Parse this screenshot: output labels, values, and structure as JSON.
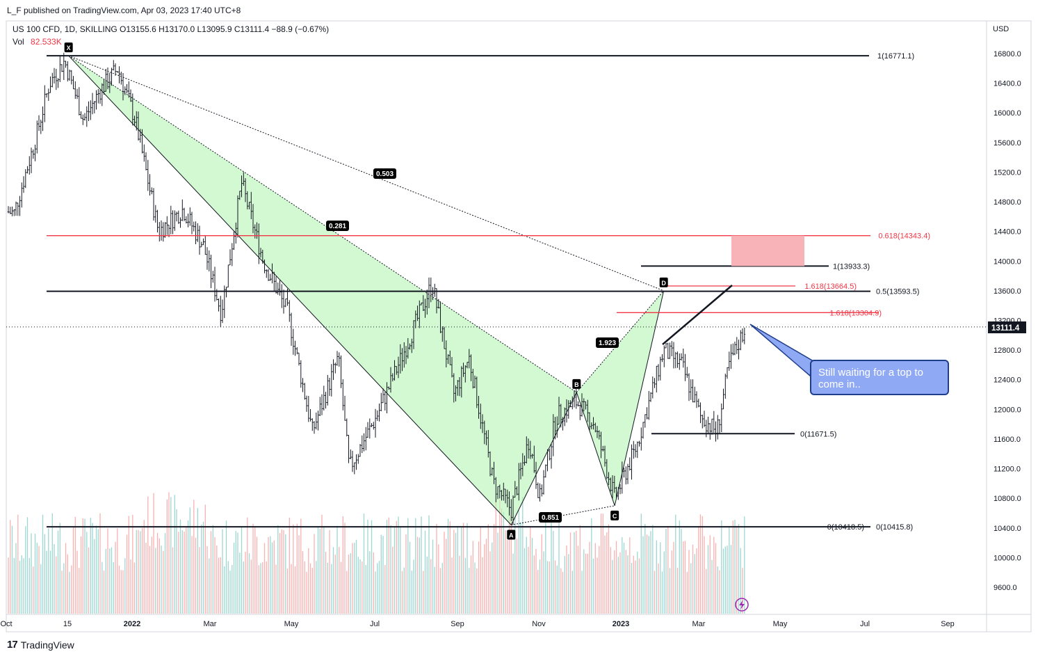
{
  "header": {
    "published": "L_F published on TradingView.com, Apr 03, 2023 17:40 UTC+8",
    "legend": "US 100 CFD, 1D, SKILLING  O13155.6  H13170.0  L13095.9  C13111.4  −88.9 (−0.67%)",
    "volume_label": "Vol",
    "volume_value": "82.533K"
  },
  "footer": {
    "brand": "TradingView",
    "logo": "17"
  },
  "price_axis": {
    "currency": "USD",
    "ticks": [
      "16800.0",
      "16400.0",
      "16000.0",
      "15600.0",
      "15200.0",
      "14800.0",
      "14400.0",
      "14000.0",
      "13600.0",
      "13200.0",
      "12800.0",
      "12400.0",
      "12000.0",
      "11600.0",
      "11200.0",
      "10800.0",
      "10400.0",
      "10000.0",
      "9600.0"
    ],
    "last_price": "13111.4"
  },
  "time_axis": {
    "ticks": [
      "Oct",
      "15",
      "2022",
      "Mar",
      "May",
      "Jul",
      "Sep",
      "Nov",
      "2023",
      "Mar",
      "May",
      "Jul",
      "Sep"
    ]
  },
  "annotation": {
    "text": "Still waiting for a top to come in.."
  },
  "chart_data": {
    "type": "candlestick",
    "symbol": "US 100 CFD",
    "interval": "1D",
    "currency": "USD",
    "ylim": [
      9300,
      17100
    ],
    "last_price": 13111.4,
    "harmonic_points": [
      {
        "label": "X",
        "date": "2021-11-22",
        "price": 16771
      },
      {
        "label": "A",
        "date": "2022-10-13",
        "price": 10440
      },
      {
        "label": "B",
        "date": "2022-11-30",
        "price": 12230
      },
      {
        "label": "C",
        "date": "2022-12-28",
        "price": 10700
      },
      {
        "label": "D",
        "date": "2023-02-02",
        "price": 13600
      }
    ],
    "ratio_labels": [
      "0.503",
      "0.281",
      "1.923",
      "0.851"
    ],
    "levels": [
      {
        "label": "1(16771.1)",
        "value": 16771.1,
        "color": "#131722"
      },
      {
        "label": "0.618(14343.4)",
        "value": 14343.4,
        "color": "#f23645"
      },
      {
        "label": "1(13933.3)",
        "value": 13933.3,
        "color": "#131722"
      },
      {
        "label": "1.618(13664.5)",
        "value": 13664.5,
        "color": "#f23645"
      },
      {
        "label": "0.5(13593.5)",
        "value": 13593.5,
        "color": "#131722"
      },
      {
        "label": "1.618(13304.9)",
        "value": 13304.9,
        "color": "#f23645"
      },
      {
        "label": "0(11671.5)",
        "value": 11671.5,
        "color": "#131722"
      },
      {
        "label": "0(10418.5)",
        "value": 10418.5,
        "color": "#131722"
      },
      {
        "label": "0(10415.8)",
        "value": 10415.8,
        "color": "#131722"
      }
    ],
    "target_zone": {
      "from": 13933.3,
      "to": 14343.4,
      "color": "#f7b3b8"
    },
    "price_path": [
      {
        "date": "2021-09-28",
        "price": 14700
      },
      {
        "date": "2021-10-13",
        "price": 14650
      },
      {
        "date": "2021-10-28",
        "price": 15600
      },
      {
        "date": "2021-11-08",
        "price": 16400
      },
      {
        "date": "2021-11-19",
        "price": 16700
      },
      {
        "date": "2021-12-03",
        "price": 15900
      },
      {
        "date": "2021-12-15",
        "price": 16300
      },
      {
        "date": "2021-12-28",
        "price": 16600
      },
      {
        "date": "2022-01-10",
        "price": 15900
      },
      {
        "date": "2022-01-27",
        "price": 14400
      },
      {
        "date": "2022-02-14",
        "price": 14700
      },
      {
        "date": "2022-03-01",
        "price": 14200
      },
      {
        "date": "2022-03-14",
        "price": 13300
      },
      {
        "date": "2022-03-29",
        "price": 15050
      },
      {
        "date": "2022-04-14",
        "price": 14000
      },
      {
        "date": "2022-05-02",
        "price": 13300
      },
      {
        "date": "2022-05-20",
        "price": 11700
      },
      {
        "date": "2022-06-08",
        "price": 12700
      },
      {
        "date": "2022-06-16",
        "price": 11200
      },
      {
        "date": "2022-07-06",
        "price": 11900
      },
      {
        "date": "2022-07-29",
        "price": 12900
      },
      {
        "date": "2022-08-16",
        "price": 13700
      },
      {
        "date": "2022-09-01",
        "price": 12200
      },
      {
        "date": "2022-09-12",
        "price": 12700
      },
      {
        "date": "2022-09-30",
        "price": 11000
      },
      {
        "date": "2022-10-13",
        "price": 10650
      },
      {
        "date": "2022-10-26",
        "price": 11600
      },
      {
        "date": "2022-11-03",
        "price": 10800
      },
      {
        "date": "2022-11-15",
        "price": 11900
      },
      {
        "date": "2022-11-30",
        "price": 12100
      },
      {
        "date": "2022-12-13",
        "price": 11800
      },
      {
        "date": "2022-12-28",
        "price": 10800
      },
      {
        "date": "2023-01-13",
        "price": 11500
      },
      {
        "date": "2023-02-02",
        "price": 12800
      },
      {
        "date": "2023-02-15",
        "price": 12600
      },
      {
        "date": "2023-03-01",
        "price": 11900
      },
      {
        "date": "2023-03-13",
        "price": 11700
      },
      {
        "date": "2023-03-22",
        "price": 12600
      },
      {
        "date": "2023-04-03",
        "price": 13111
      }
    ]
  }
}
